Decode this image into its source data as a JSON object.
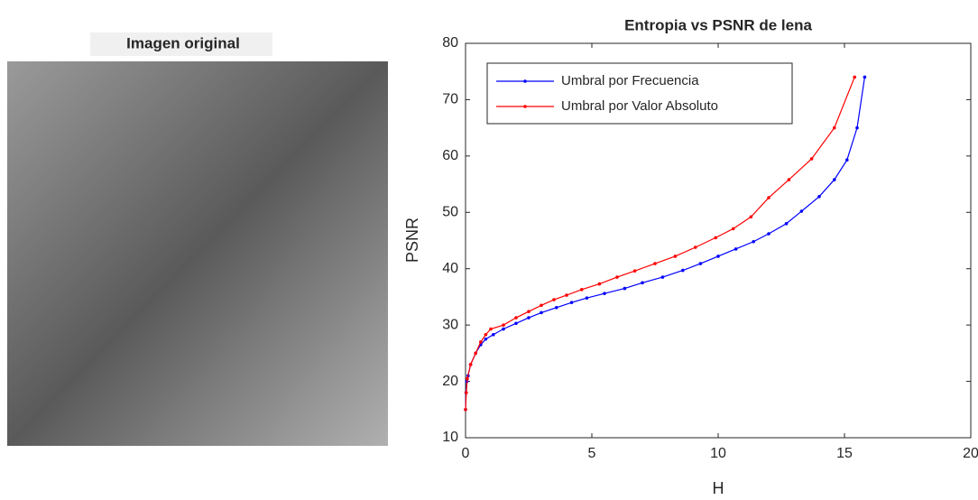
{
  "image": {
    "title": "Imagen original"
  },
  "chart_data": {
    "type": "line",
    "title": "Entropia vs PSNR de lena",
    "x_label": "H",
    "y_label": "PSNR",
    "xlim": [
      0,
      20
    ],
    "xticks": [
      0,
      5,
      10,
      15,
      20
    ],
    "ylim": [
      10,
      80
    ],
    "yticks": [
      10,
      20,
      30,
      40,
      50,
      60,
      70,
      80
    ],
    "grid": false,
    "legend": "upper left",
    "series": [
      {
        "name": "Umbral por Frecuencia",
        "color": "#0000ff",
        "x": [
          0,
          0.02,
          0.05,
          0.1,
          0.2,
          0.4,
          0.6,
          0.8,
          1.1,
          1.5,
          2,
          2.5,
          3,
          3.6,
          4.2,
          4.8,
          5.5,
          6.3,
          7,
          7.8,
          8.6,
          9.3,
          10,
          10.7,
          11.4,
          12,
          12.7,
          13.3,
          14,
          14.6,
          15.1,
          15.5,
          15.8
        ],
        "values": [
          15,
          18,
          20,
          21,
          23,
          25,
          26.5,
          27.5,
          28.3,
          29.3,
          30.3,
          31.3,
          32.2,
          33.1,
          34,
          34.8,
          35.6,
          36.5,
          37.5,
          38.5,
          39.7,
          40.9,
          42.2,
          43.5,
          44.8,
          46.2,
          48,
          50.2,
          52.8,
          55.8,
          59.3,
          65,
          74
        ]
      },
      {
        "name": "Umbral por Valor Absoluto",
        "color": "#ff0000",
        "x": [
          0,
          0.03,
          0.07,
          0.2,
          0.4,
          0.6,
          0.8,
          1,
          1.5,
          2,
          2.5,
          3,
          3.5,
          4,
          4.6,
          5.3,
          6,
          6.7,
          7.5,
          8.3,
          9.1,
          9.9,
          10.6,
          11.3,
          12,
          12.8,
          13.7,
          14.6,
          15.4
        ],
        "values": [
          15,
          18,
          20.5,
          23,
          25,
          27,
          28.3,
          29.3,
          30,
          31.3,
          32.4,
          33.5,
          34.5,
          35.3,
          36.3,
          37.3,
          38.5,
          39.6,
          40.9,
          42.2,
          43.8,
          45.5,
          47.1,
          49.2,
          52.6,
          55.8,
          59.5,
          65,
          74
        ]
      }
    ]
  }
}
